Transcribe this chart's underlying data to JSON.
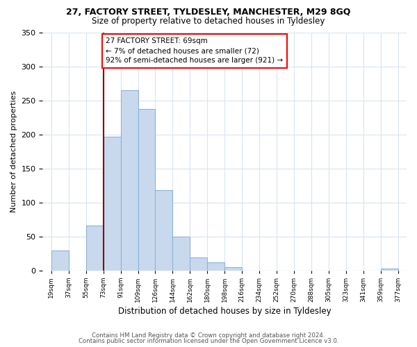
{
  "title": "27, FACTORY STREET, TYLDESLEY, MANCHESTER, M29 8GQ",
  "subtitle": "Size of property relative to detached houses in Tyldesley",
  "xlabel": "Distribution of detached houses by size in Tyldesley",
  "ylabel": "Number of detached properties",
  "bar_labels": [
    "19sqm",
    "37sqm",
    "55sqm",
    "73sqm",
    "91sqm",
    "109sqm",
    "126sqm",
    "144sqm",
    "162sqm",
    "180sqm",
    "198sqm",
    "216sqm",
    "234sqm",
    "252sqm",
    "270sqm",
    "288sqm",
    "305sqm",
    "323sqm",
    "341sqm",
    "359sqm",
    "377sqm"
  ],
  "bar_values": [
    29,
    0,
    66,
    197,
    265,
    237,
    118,
    50,
    19,
    12,
    5,
    0,
    0,
    0,
    0,
    0,
    0,
    0,
    0,
    3,
    0
  ],
  "bar_color": "#c8d9ee",
  "bar_edge_color": "#8ab4d8",
  "ylim": [
    0,
    350
  ],
  "yticks": [
    0,
    50,
    100,
    150,
    200,
    250,
    300,
    350
  ],
  "annotation_line1": "27 FACTORY STREET: 69sqm",
  "annotation_line2": "← 7% of detached houses are smaller (72)",
  "annotation_line3": "92% of semi-detached houses are larger (921) →",
  "footnote1": "Contains HM Land Registry data © Crown copyright and database right 2024.",
  "footnote2": "Contains public sector information licensed under the Open Government Licence v3.0.",
  "background_color": "#ffffff",
  "grid_color": "#d8e4f0"
}
